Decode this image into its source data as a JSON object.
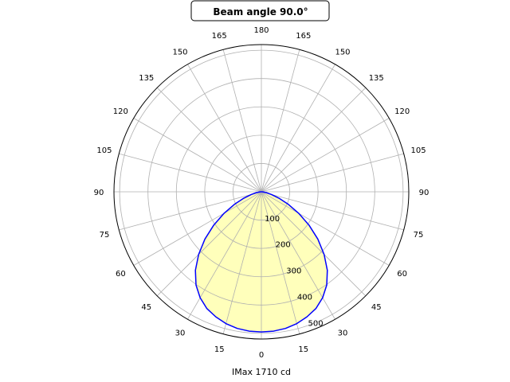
{
  "chart_data": {
    "type": "line",
    "projection": "polar",
    "title": "Beam angle 90.0°",
    "xlabel": "IMax 1710 cd",
    "angle_tick_labels": [
      "0",
      "15",
      "30",
      "45",
      "60",
      "75",
      "90",
      "105",
      "120",
      "135",
      "150",
      "165",
      "180",
      "165",
      "150",
      "135",
      "120",
      "105",
      "90",
      "75",
      "60",
      "45",
      "30",
      "15"
    ],
    "radial_tick_labels": [
      "100",
      "200",
      "300",
      "400",
      "500"
    ],
    "radial_ticks": [
      100,
      200,
      300,
      400,
      500
    ],
    "rlim": [
      0,
      520
    ],
    "grid": true,
    "series": [
      {
        "angles_deg": [
          0,
          5,
          10,
          15,
          20,
          25,
          30,
          35,
          40,
          45,
          50,
          55,
          60,
          65,
          70,
          75,
          80,
          85,
          90
        ],
        "values": [
          495,
          494,
          490,
          482,
          470,
          455,
          432,
          402,
          362,
          313,
          260,
          205,
          152,
          105,
          66,
          37,
          18,
          7,
          3
        ],
        "mirrored": true,
        "line_color": "#0000ff",
        "fill_color": "#ffffbb"
      }
    ]
  }
}
